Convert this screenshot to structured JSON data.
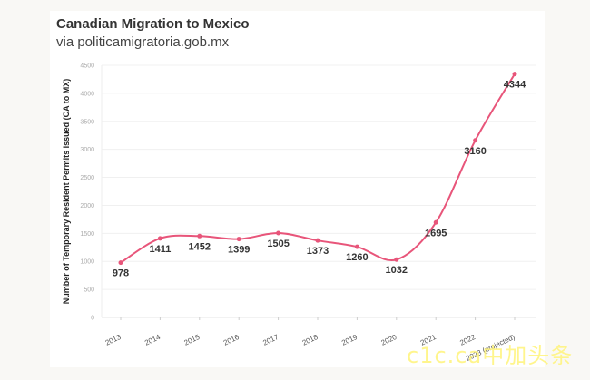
{
  "header": {
    "title": "Canadian Migration to Mexico",
    "subtitle": "via politicamigratoria.gob.mx"
  },
  "watermark": "c1c.ca中加头条",
  "chart_data": {
    "type": "line",
    "title": "Canadian Migration to Mexico",
    "subtitle": "via politicamigratoria.gob.mx",
    "xlabel": "",
    "ylabel": "Number of Temporary Resident Permits Issued (CA to MX)",
    "ylim": [
      0,
      4500
    ],
    "yticks": [
      0,
      500,
      1000,
      1500,
      2000,
      2500,
      3000,
      3500,
      4000,
      4500
    ],
    "categories": [
      "2013",
      "2014",
      "2015",
      "2016",
      "2017",
      "2018",
      "2019",
      "2020",
      "2021",
      "2022",
      "2023 (projected)"
    ],
    "values": [
      978,
      1411,
      1452,
      1399,
      1505,
      1373,
      1260,
      1032,
      1695,
      3160,
      4344
    ],
    "line_color": "#e8557a",
    "grid": true,
    "legend": "none"
  }
}
